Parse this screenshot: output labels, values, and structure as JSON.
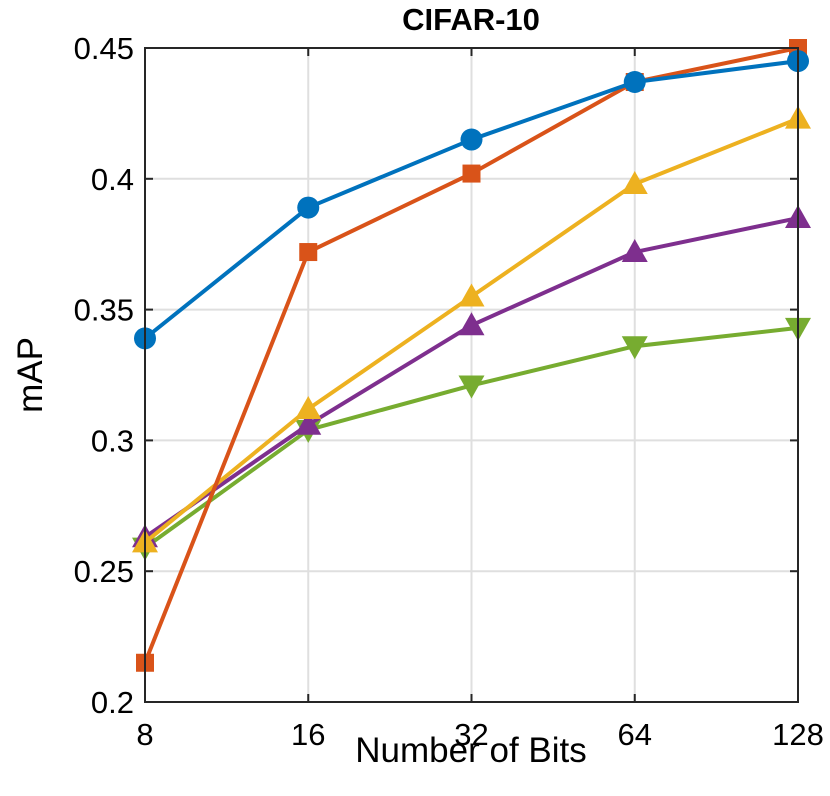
{
  "chart_data": {
    "type": "line",
    "title": "CIFAR-10",
    "xlabel": "Number of Bits",
    "ylabel": "mAP",
    "x": [
      8,
      16,
      32,
      64,
      128
    ],
    "x_tick_labels": [
      "8",
      "16",
      "32",
      "64",
      "128"
    ],
    "x_scale": "log2",
    "ylim": [
      0.2,
      0.45
    ],
    "y_ticks": [
      0.2,
      0.25,
      0.3,
      0.35,
      0.4,
      0.45
    ],
    "y_tick_labels": [
      "0.2",
      "0.25",
      "0.3",
      "0.35",
      "0.4",
      "0.45"
    ],
    "grid": true,
    "series": [
      {
        "name": "series-green",
        "color": "#77AC30",
        "marker": "triangle-down",
        "values": [
          0.259,
          0.304,
          0.321,
          0.336,
          0.343
        ]
      },
      {
        "name": "series-purple",
        "color": "#7E2F8E",
        "marker": "triangle-up",
        "values": [
          0.263,
          0.306,
          0.344,
          0.372,
          0.385
        ]
      },
      {
        "name": "series-yellow",
        "color": "#EDB120",
        "marker": "triangle-up",
        "values": [
          0.261,
          0.312,
          0.355,
          0.398,
          0.423
        ]
      },
      {
        "name": "series-orange",
        "color": "#D95319",
        "marker": "square",
        "values": [
          0.215,
          0.372,
          0.402,
          0.437,
          0.45
        ]
      },
      {
        "name": "series-blue",
        "color": "#0072BD",
        "marker": "circle",
        "values": [
          0.339,
          0.389,
          0.415,
          0.437,
          0.445
        ]
      }
    ]
  }
}
